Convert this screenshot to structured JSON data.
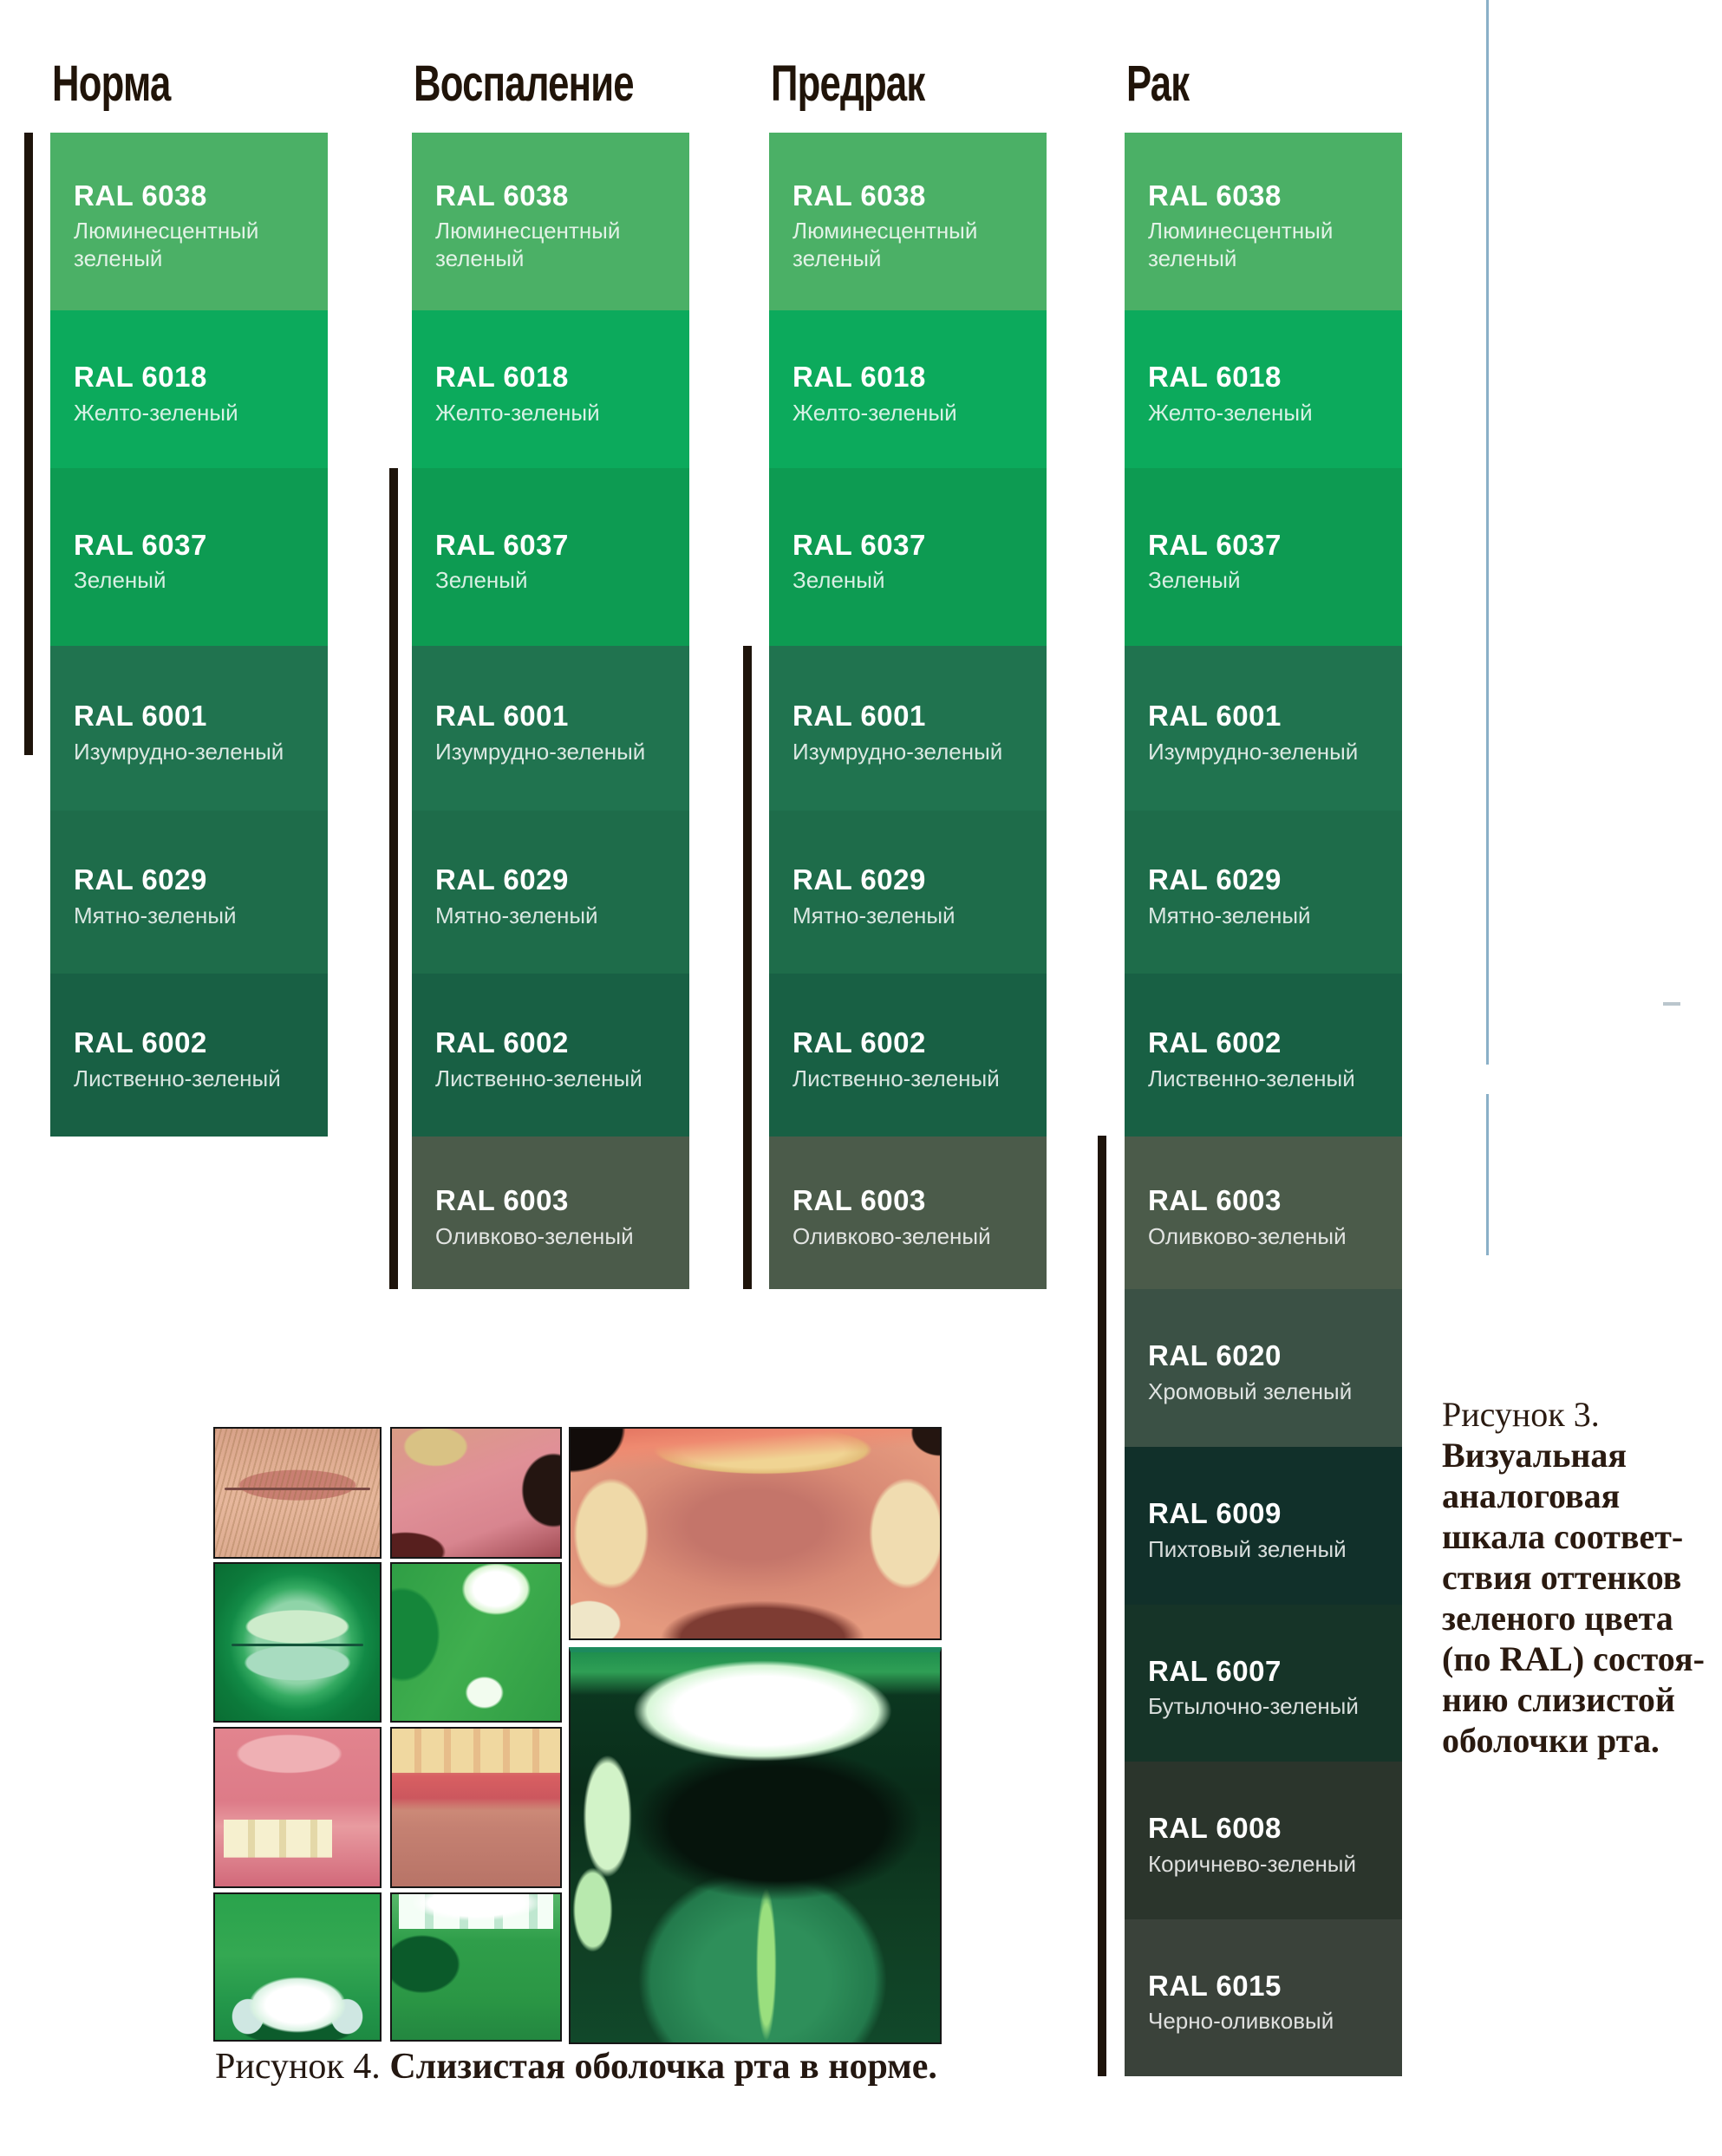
{
  "figure3": {
    "columns": [
      {
        "id": "norma",
        "header": "Норма",
        "ral_codes": [
          "6038",
          "6018",
          "6037",
          "6001",
          "6029",
          "6002"
        ]
      },
      {
        "id": "vospalenie",
        "header": "Воспаление",
        "ral_codes": [
          "6038",
          "6018",
          "6037",
          "6001",
          "6029",
          "6002",
          "6003"
        ]
      },
      {
        "id": "predrak",
        "header": "Предрак",
        "ral_codes": [
          "6038",
          "6018",
          "6037",
          "6001",
          "6029",
          "6002",
          "6003"
        ]
      },
      {
        "id": "rak",
        "header": "Рак",
        "ral_codes": [
          "6038",
          "6018",
          "6037",
          "6001",
          "6029",
          "6002",
          "6003",
          "6020",
          "6009",
          "6007",
          "6008",
          "6015"
        ]
      }
    ],
    "ral": {
      "6038": {
        "code": "RAL 6038",
        "name": "Люминесцентный зеленый",
        "color": "#4bb066"
      },
      "6018": {
        "code": "RAL 6018",
        "name": "Желто-зеленый",
        "color": "#0caa5c"
      },
      "6037": {
        "code": "RAL 6037",
        "name": "Зеленый",
        "color": "#0d9b52"
      },
      "6001": {
        "code": "RAL 6001",
        "name": "Изумрудно-зеленый",
        "color": "#20734f"
      },
      "6029": {
        "code": "RAL 6029",
        "name": "Мятно-зеленый",
        "color": "#1e6c4a"
      },
      "6002": {
        "code": "RAL 6002",
        "name": "Лиственно-зеленый",
        "color": "#186044"
      },
      "6003": {
        "code": "RAL 6003",
        "name": "Оливково-зеленый",
        "color": "#4b5b4a"
      },
      "6020": {
        "code": "RAL 6020",
        "name": "Хромовый зеленый",
        "color": "#3b5145"
      },
      "6009": {
        "code": "RAL 6009",
        "name": "Пихтовый зеленый",
        "color": "#11302a"
      },
      "6007": {
        "code": "RAL 6007",
        "name": "Бутылочно-зеленый",
        "color": "#163428"
      },
      "6008": {
        "code": "RAL 6008",
        "name": "Коричнево-зеленый",
        "color": "#2b352c"
      },
      "6015": {
        "code": "RAL 6015",
        "name": "Черно-оливковый",
        "color": "#3a423a"
      }
    },
    "caption": {
      "lines": [
        {
          "text": "Рисунок 3.",
          "bold": false
        },
        {
          "text": "Визуальная",
          "bold": true
        },
        {
          "text": "аналоговая",
          "bold": true
        },
        {
          "text": "шкала соответ-",
          "bold": true
        },
        {
          "text": "ствия оттенков",
          "bold": true
        },
        {
          "text": "зеленого цвета",
          "bold": true
        },
        {
          "text": "(по RAL) состоя-",
          "bold": true
        },
        {
          "text": "нию слизистой",
          "bold": true
        },
        {
          "text": "оболочки рта.",
          "bold": true
        }
      ]
    }
  },
  "figure4": {
    "caption_prefix": "Рисунок 4.",
    "caption_body": "Слизистая оболочка рта в норме."
  },
  "colors": {
    "range_bar": "#1e140b",
    "header_text": "#201409",
    "caption_text": "#2a1a10",
    "accent_line": "#8ab0c8",
    "swatch_title": "#ffffff"
  }
}
